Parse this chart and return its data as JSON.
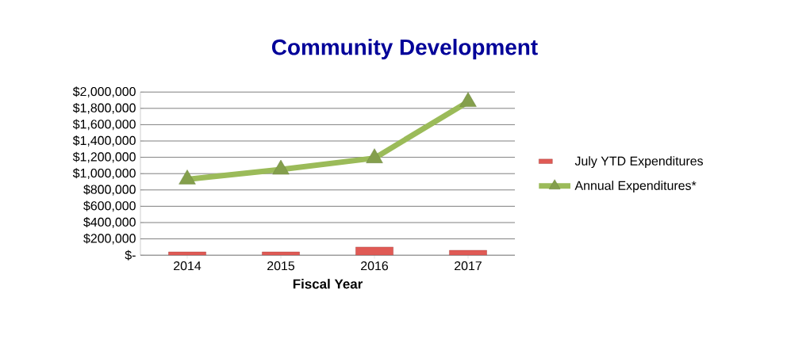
{
  "chart_data": {
    "type": "bar",
    "title": "Community Development",
    "xlabel": "Fiscal Year",
    "categories": [
      "2014",
      "2015",
      "2016",
      "2017"
    ],
    "series": [
      {
        "name": "July YTD Expenditures",
        "color": "#e05a55",
        "values": [
          40000,
          40000,
          100000,
          60000
        ]
      },
      {
        "name": "Annual Expenditures*",
        "type": "line",
        "color": "#9bbb59",
        "marker": "triangle",
        "values": [
          930000,
          1050000,
          1190000,
          1880000
        ]
      }
    ],
    "ylim": [
      0,
      2000000
    ],
    "yticks": [
      {
        "value": 0,
        "label": "$-"
      },
      {
        "value": 200000,
        "label": "$200,000"
      },
      {
        "value": 400000,
        "label": "$400,000"
      },
      {
        "value": 600000,
        "label": "$600,000"
      },
      {
        "value": 800000,
        "label": "$800,000"
      },
      {
        "value": 1000000,
        "label": "$1,000,000"
      },
      {
        "value": 1200000,
        "label": "$1,200,000"
      },
      {
        "value": 1400000,
        "label": "$1,400,000"
      },
      {
        "value": 1600000,
        "label": "$1,600,000"
      },
      {
        "value": 1800000,
        "label": "$1,800,000"
      },
      {
        "value": 2000000,
        "label": "$2,000,000"
      }
    ],
    "grid": "y",
    "legend": "right"
  }
}
